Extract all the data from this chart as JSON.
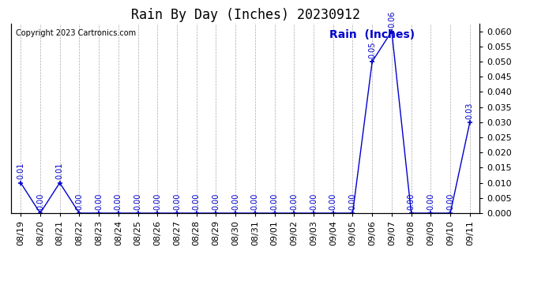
{
  "title": "Rain By Day (Inches) 20230912",
  "copyright_text": "Copyright 2023 Cartronics.com",
  "ylabel_text": "Rain  (Inches)",
  "dates": [
    "08/19",
    "08/20",
    "08/21",
    "08/22",
    "08/23",
    "08/24",
    "08/25",
    "08/26",
    "08/27",
    "08/28",
    "08/29",
    "08/30",
    "08/31",
    "09/01",
    "09/02",
    "09/03",
    "09/04",
    "09/05",
    "09/06",
    "09/07",
    "09/08",
    "09/09",
    "09/10",
    "09/11"
  ],
  "values": [
    0.01,
    0.0,
    0.01,
    0.0,
    0.0,
    0.0,
    0.0,
    0.0,
    0.0,
    0.0,
    0.0,
    0.0,
    0.0,
    0.0,
    0.0,
    0.0,
    0.0,
    0.0,
    0.05,
    0.06,
    0.0,
    0.0,
    0.0,
    0.03
  ],
  "line_color": "#0000cc",
  "marker": "+",
  "ylim": [
    0.0,
    0.0625
  ],
  "yticks": [
    0.0,
    0.005,
    0.01,
    0.015,
    0.02,
    0.025,
    0.03,
    0.035,
    0.04,
    0.045,
    0.05,
    0.055,
    0.06
  ],
  "background_color": "#ffffff",
  "grid_color": "#aaaaaa",
  "title_fontsize": 12,
  "tick_fontsize": 8,
  "annotation_fontsize": 7,
  "copyright_fontsize": 7,
  "ylabel_fontsize": 10
}
